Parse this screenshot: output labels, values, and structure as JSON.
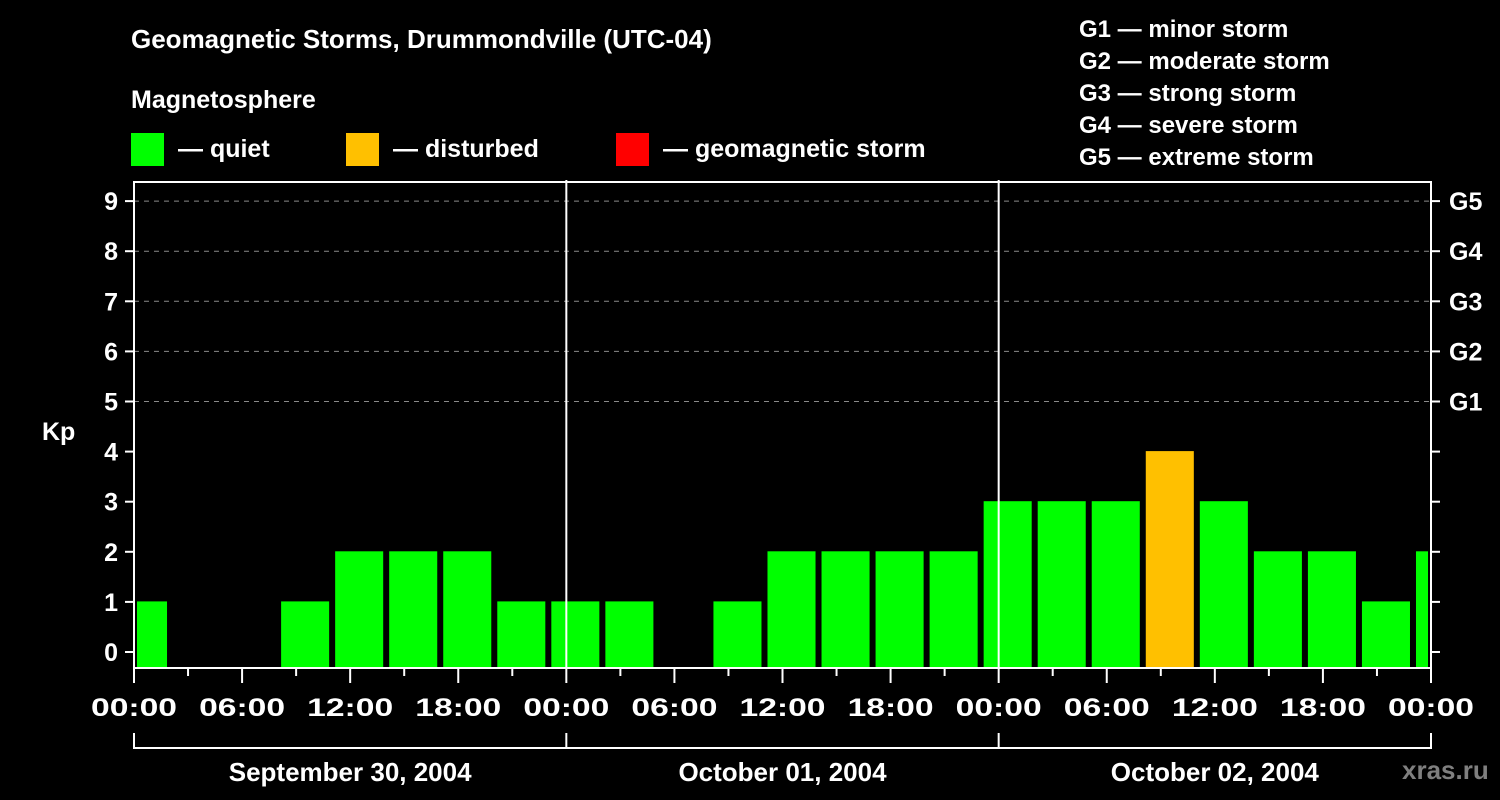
{
  "header": {
    "title": "Geomagnetic Storms, Drummondville (UTC-04)",
    "subtitle": "Magnetosphere"
  },
  "legend": [
    {
      "label": "— quiet",
      "color": "#00ff00"
    },
    {
      "label": "— disturbed",
      "color": "#ffc000"
    },
    {
      "label": "— geomagnetic storm",
      "color": "#ff0000"
    }
  ],
  "storm_scale": [
    "G1 — minor storm",
    "G2 — moderate storm",
    "G3 — strong storm",
    "G4 — severe storm",
    "G5 — extreme storm"
  ],
  "watermark": "xras.ru",
  "chart_data": {
    "type": "bar",
    "title": "Geomagnetic Storms, Drummondville (UTC-04)",
    "xlabel": "",
    "ylabel": "Kp",
    "ylim": [
      0,
      9
    ],
    "yticks": [
      0,
      1,
      2,
      3,
      4,
      5,
      6,
      7,
      8,
      9
    ],
    "right_axis_labels": {
      "5": "G1",
      "6": "G2",
      "7": "G3",
      "8": "G4",
      "9": "G5"
    },
    "grid": "dashed horizontal at Kp 5–9",
    "x_tick_labels": [
      "00:00",
      "06:00",
      "12:00",
      "18:00",
      "00:00",
      "06:00",
      "12:00",
      "18:00",
      "00:00",
      "06:00",
      "12:00",
      "18:00",
      "00:00"
    ],
    "days": [
      "September 30, 2004",
      "October 01, 2004",
      "October 02, 2004"
    ],
    "bar_interval_hours": 3,
    "first_bar_start_local": "Sep 30 -01:00 (partially visible from 00:00)",
    "categories": [
      "Sep30 23:00-02:00",
      "02:00-05:00",
      "05:00-08:00",
      "08:00-11:00",
      "11:00-14:00",
      "14:00-17:00",
      "17:00-20:00",
      "20:00-23:00",
      "Oct01 23:00-02:00",
      "02:00-05:00",
      "05:00-08:00",
      "08:00-11:00",
      "11:00-14:00",
      "14:00-17:00",
      "17:00-20:00",
      "20:00-23:00",
      "Oct02 23:00-02:00",
      "02:00-05:00",
      "05:00-08:00",
      "08:00-11:00",
      "11:00-14:00",
      "14:00-17:00",
      "17:00-20:00",
      "20:00-23:00",
      "Oct02 23:00-"
    ],
    "values": [
      1,
      0,
      0,
      1,
      2,
      2,
      2,
      1,
      1,
      1,
      0,
      1,
      2,
      2,
      2,
      2,
      3,
      3,
      3,
      4,
      3,
      2,
      2,
      1,
      2
    ],
    "colors": [
      "quiet",
      "quiet",
      "quiet",
      "quiet",
      "quiet",
      "quiet",
      "quiet",
      "quiet",
      "quiet",
      "quiet",
      "quiet",
      "quiet",
      "quiet",
      "quiet",
      "quiet",
      "quiet",
      "quiet",
      "quiet",
      "quiet",
      "disturbed",
      "quiet",
      "quiet",
      "quiet",
      "quiet",
      "quiet"
    ],
    "legend": [
      "quiet",
      "disturbed",
      "geomagnetic storm"
    ]
  }
}
